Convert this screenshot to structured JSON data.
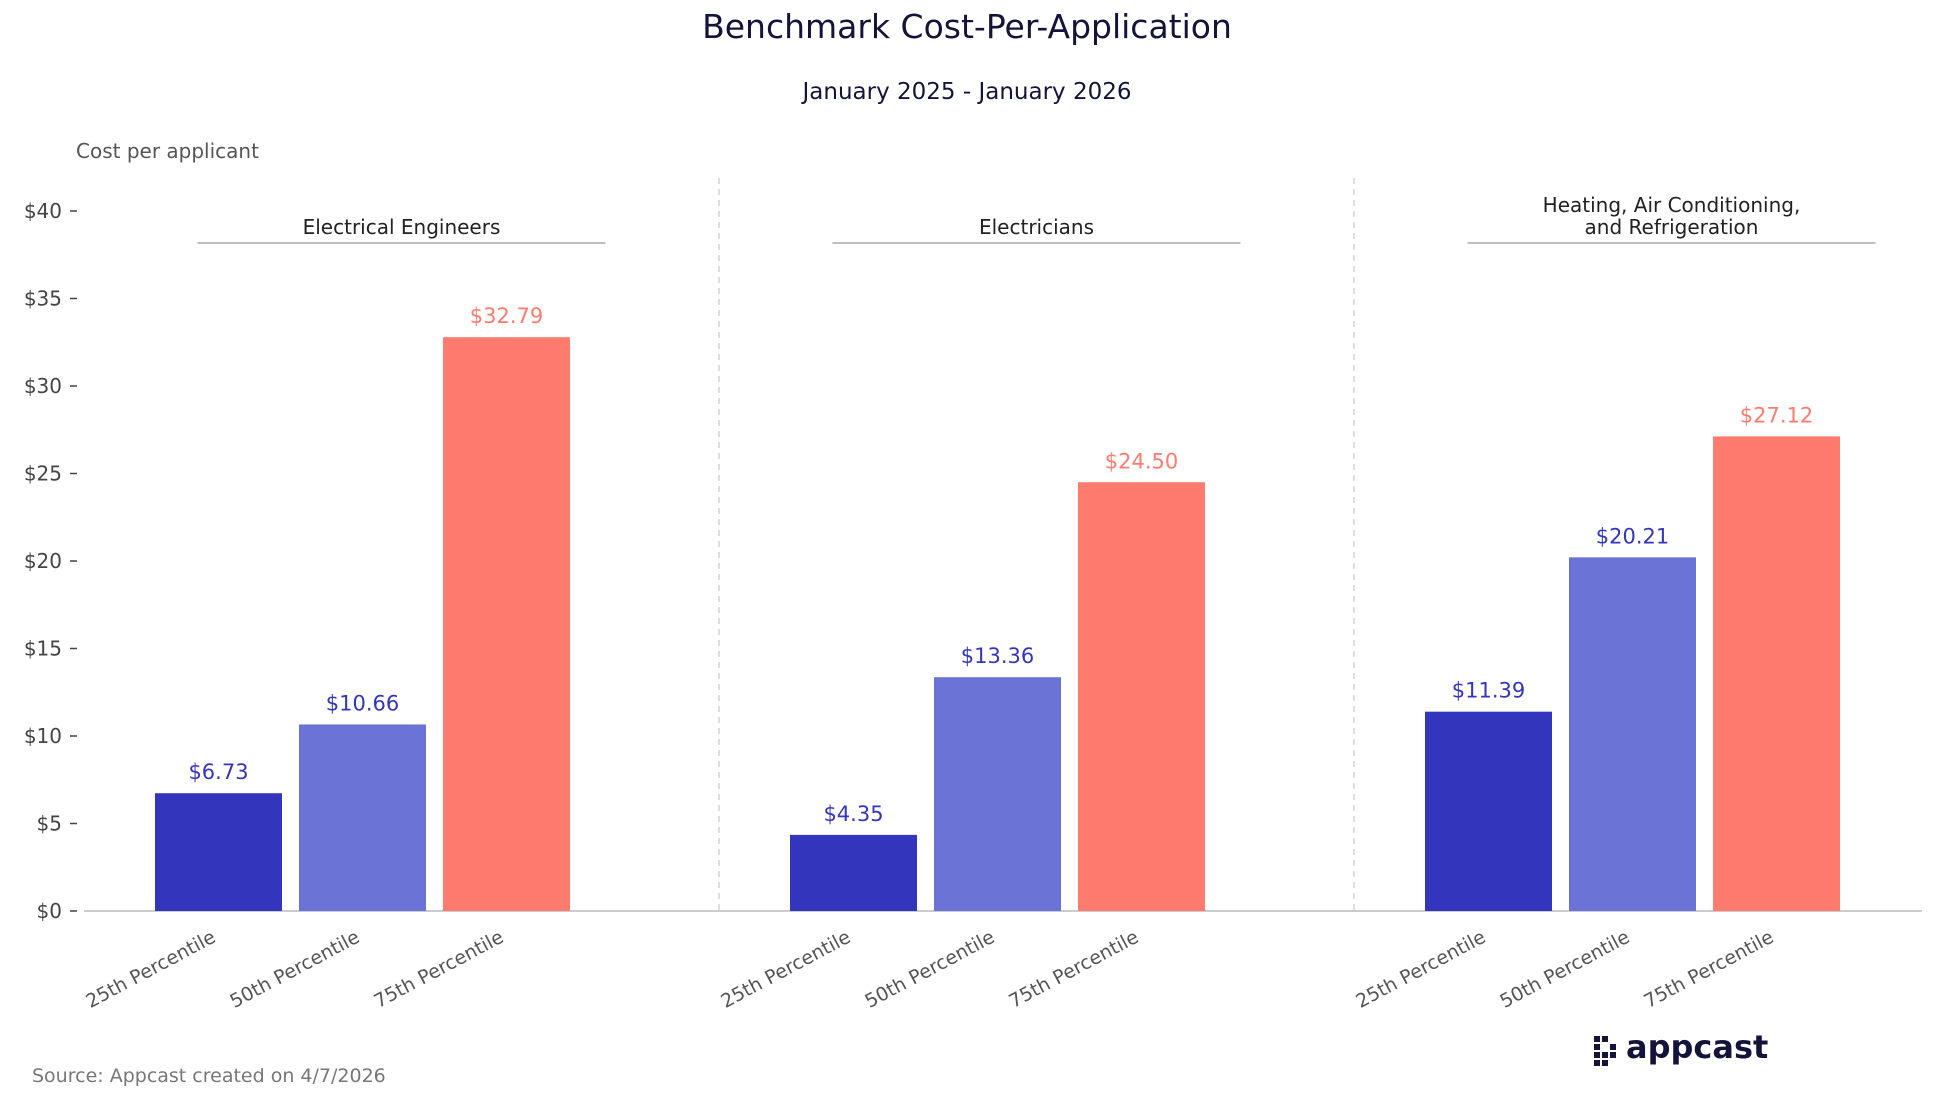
{
  "chart_data": {
    "type": "bar",
    "title": "Benchmark Cost-Per-Application",
    "subtitle": "January 2025 - January 2026",
    "ylabel": "Cost per applicant",
    "ylim": [
      0,
      40
    ],
    "yticks": [
      0,
      5,
      10,
      15,
      20,
      25,
      30,
      35,
      40
    ],
    "ytick_labels": [
      "$0",
      "$5",
      "$10",
      "$15",
      "$20",
      "$25",
      "$30",
      "$35",
      "$40"
    ],
    "categories": [
      "25th Percentile",
      "50th Percentile",
      "75th Percentile"
    ],
    "colors": [
      "#3336bd",
      "#6b74d6",
      "#ff7b6e"
    ],
    "label_colors": [
      "#3336bd",
      "#3336bd",
      "#ff7b6e"
    ],
    "panels": [
      {
        "title": [
          "Electrical Engineers"
        ],
        "values": [
          6.73,
          10.66,
          32.79
        ],
        "labels": [
          "$6.73",
          "$10.66",
          "$32.79"
        ]
      },
      {
        "title": [
          "Electricians"
        ],
        "values": [
          4.35,
          13.36,
          24.5
        ],
        "labels": [
          "$4.35",
          "$13.36",
          "$24.50"
        ]
      },
      {
        "title": [
          "Heating, Air Conditioning,",
          "and Refrigeration"
        ],
        "values": [
          11.39,
          20.21,
          27.12
        ],
        "labels": [
          "$11.39",
          "$20.21",
          "$27.12"
        ]
      }
    ]
  },
  "source": "Source: Appcast created on 4/7/2026",
  "logo_text": "appcast",
  "logo_icon": "grid-dots-icon"
}
